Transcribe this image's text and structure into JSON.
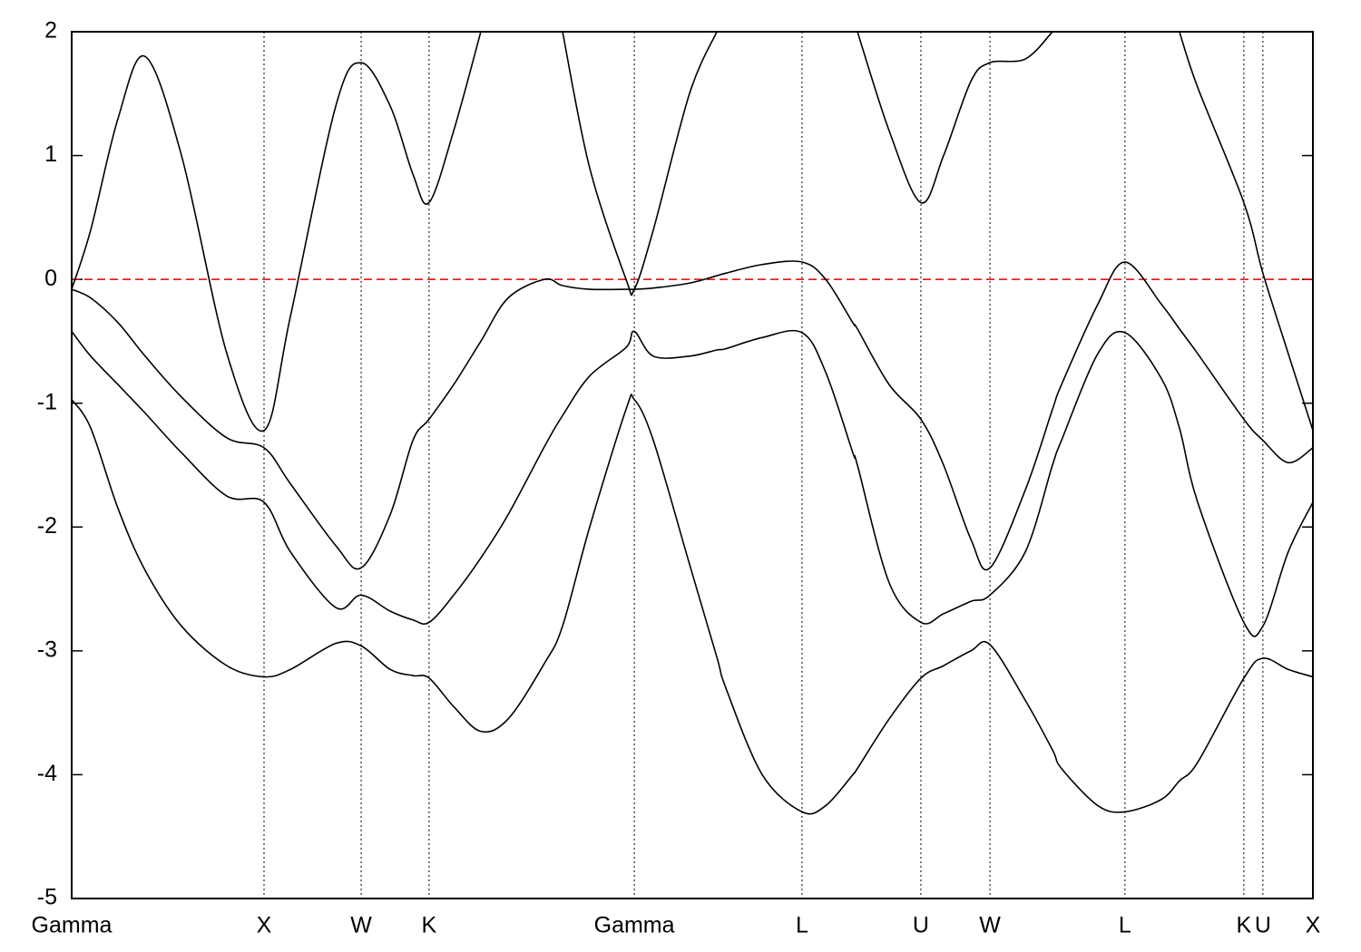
{
  "chart_data": {
    "type": "line",
    "x": [
      0,
      0.099,
      0.241,
      0.382,
      0.571,
      0.807,
      1.0,
      1.137,
      1.373,
      1.505,
      1.656,
      1.774,
      1.858,
      1.986,
      2.127,
      2.269,
      2.458,
      2.552,
      2.693,
      2.882,
      2.925,
      3.024,
      3.212,
      3.354,
      3.401,
      3.59,
      3.797,
      3.92,
      4.061,
      4.085,
      4.25,
      4.415,
      4.533,
      4.675,
      4.774,
      4.958,
      5.099,
      5.146,
      5.335,
      5.476,
      5.665,
      5.759,
      5.854,
      6.094,
      6.193,
      6.325,
      6.453
    ],
    "series": [
      {
        "color": "#000000",
        "values": [
          -0.97,
          -1.2,
          -1.85,
          -2.35,
          -2.8,
          -3.12,
          -3.21,
          -3.15,
          -2.94,
          -2.96,
          -3.15,
          -3.2,
          -3.22,
          -3.45,
          -3.65,
          -3.55,
          -3.1,
          -2.8,
          -2.0,
          -1.05,
          -0.97,
          -1.3,
          -2.3,
          -3.05,
          -3.3,
          -4.0,
          -4.3,
          -4.25,
          -4.0,
          -3.95,
          -3.55,
          -3.22,
          -3.12,
          -3.0,
          -2.95,
          -3.4,
          -3.8,
          -3.95,
          -4.25,
          -4.3,
          -4.2,
          -4.05,
          -3.9,
          -3.22,
          -3.06,
          -3.15,
          -3.21
        ]
      },
      {
        "color": "#000000",
        "values": [
          -0.42,
          -0.62,
          -0.85,
          -1.08,
          -1.4,
          -1.75,
          -1.8,
          -2.2,
          -2.65,
          -2.55,
          -2.68,
          -2.75,
          -2.77,
          -2.55,
          -2.25,
          -1.9,
          -1.35,
          -1.1,
          -0.78,
          -0.55,
          -0.42,
          -0.62,
          -0.62,
          -0.57,
          -0.56,
          -0.47,
          -0.43,
          -0.75,
          -1.4,
          -1.5,
          -2.45,
          -2.77,
          -2.7,
          -2.6,
          -2.55,
          -2.2,
          -1.5,
          -1.3,
          -0.6,
          -0.43,
          -0.8,
          -1.2,
          -1.8,
          -2.77,
          -2.8,
          -2.2,
          -1.8
        ]
      },
      {
        "color": "#000000",
        "values": [
          -0.08,
          -0.15,
          -0.35,
          -0.62,
          -0.95,
          -1.28,
          -1.36,
          -1.65,
          -2.15,
          -2.33,
          -1.9,
          -1.3,
          -1.13,
          -0.85,
          -0.5,
          -0.15,
          0.0,
          -0.05,
          -0.08,
          -0.08,
          -0.08,
          -0.07,
          -0.03,
          0.03,
          0.05,
          0.12,
          0.14,
          0.0,
          -0.35,
          -0.4,
          -0.85,
          -1.13,
          -1.5,
          -2.1,
          -2.33,
          -1.7,
          -1.05,
          -0.85,
          -0.2,
          0.14,
          -0.2,
          -0.4,
          -0.6,
          -1.13,
          -1.3,
          -1.48,
          -1.36
        ]
      },
      {
        "color": "#000000",
        "values": [
          -0.08,
          0.4,
          1.3,
          1.8,
          1.0,
          -0.6,
          -1.22,
          -0.3,
          1.4,
          1.75,
          1.4,
          0.85,
          0.62,
          1.2,
          2.0,
          null,
          null,
          2.0,
          0.9,
          0.0,
          -0.08,
          0.4,
          1.5,
          2.0,
          null,
          null,
          null,
          null,
          null,
          2.0,
          1.2,
          0.62,
          1.0,
          1.6,
          1.75,
          1.78,
          2.0,
          null,
          null,
          null,
          null,
          2.0,
          1.55,
          0.62,
          0.05,
          -0.6,
          -1.22
        ]
      }
    ],
    "xlim": [
      0,
      6.453
    ],
    "xticks": [
      {
        "value": 0,
        "label": "Gamma"
      },
      {
        "value": 1.0,
        "label": "X"
      },
      {
        "value": 1.505,
        "label": "W"
      },
      {
        "value": 1.858,
        "label": "K"
      },
      {
        "value": 2.925,
        "label": "Gamma"
      },
      {
        "value": 3.797,
        "label": "L"
      },
      {
        "value": 4.415,
        "label": "U"
      },
      {
        "value": 4.774,
        "label": "W"
      },
      {
        "value": 5.476,
        "label": "L"
      },
      {
        "value": 6.094,
        "label": "K"
      },
      {
        "value": 6.193,
        "label": "U"
      },
      {
        "value": 6.453,
        "label": "X"
      }
    ],
    "ylim": [
      -5,
      2
    ],
    "yticks": [
      -5,
      -4,
      -3,
      -2,
      -1,
      0,
      1,
      2
    ],
    "x_grid": true,
    "reference_line": 0,
    "reference_color": "#e00000"
  }
}
